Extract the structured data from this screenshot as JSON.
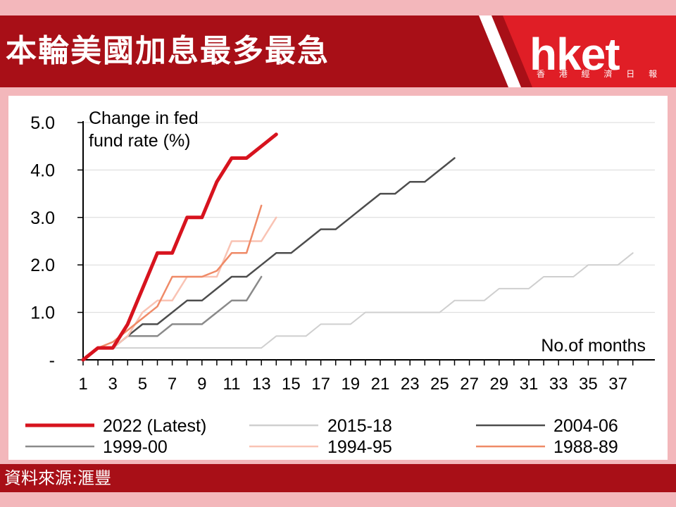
{
  "header": {
    "title": "本輪美國加息最多最急",
    "logo": "hket",
    "logo_sub": "香 港 經 濟 日 報",
    "bg_color": "#a80f17"
  },
  "footer": {
    "source": "資料來源:滙豐"
  },
  "chart_data": {
    "type": "line",
    "ylabel": "Change in fed fund rate (%)",
    "xlabel": "No.of months",
    "ylim": [
      0,
      5
    ],
    "xlim": [
      1,
      38
    ],
    "y_ticks": [
      "-",
      "1.0",
      "2.0",
      "3.0",
      "4.0",
      "5.0"
    ],
    "x_ticks": [
      "1",
      "3",
      "5",
      "7",
      "9",
      "11",
      "13",
      "15",
      "17",
      "19",
      "21",
      "23",
      "25",
      "27",
      "29",
      "31",
      "33",
      "35",
      "37"
    ],
    "grid": "horizontal",
    "legend_position": "bottom",
    "series": [
      {
        "name": "2015-18",
        "color": "#cfcfcf",
        "width": 2,
        "x": [
          1,
          2,
          3,
          4,
          5,
          6,
          7,
          8,
          9,
          10,
          11,
          12,
          13,
          14,
          15,
          16,
          17,
          18,
          19,
          20,
          21,
          22,
          23,
          24,
          25,
          26,
          27,
          28,
          29,
          30,
          31,
          32,
          33,
          34,
          35,
          36,
          37,
          38
        ],
        "y": [
          0,
          0.25,
          0.25,
          0.25,
          0.25,
          0.25,
          0.25,
          0.25,
          0.25,
          0.25,
          0.25,
          0.25,
          0.25,
          0.5,
          0.5,
          0.5,
          0.75,
          0.75,
          0.75,
          1.0,
          1.0,
          1.0,
          1.0,
          1.0,
          1.0,
          1.25,
          1.25,
          1.25,
          1.5,
          1.5,
          1.5,
          1.75,
          1.75,
          1.75,
          2.0,
          2.0,
          2.0,
          2.25
        ]
      },
      {
        "name": "1999-00",
        "color": "#8a8a8a",
        "width": 2.5,
        "x": [
          1,
          2,
          3,
          4,
          5,
          6,
          7,
          8,
          9,
          10,
          11,
          12,
          13
        ],
        "y": [
          0,
          0.25,
          0.25,
          0.5,
          0.5,
          0.5,
          0.75,
          0.75,
          0.75,
          1.0,
          1.25,
          1.25,
          1.75
        ]
      },
      {
        "name": "2004-06",
        "color": "#4d4d4d",
        "width": 2.5,
        "x": [
          1,
          2,
          3,
          4,
          5,
          6,
          7,
          8,
          9,
          10,
          11,
          12,
          13,
          14,
          15,
          16,
          17,
          18,
          19,
          20,
          21,
          22,
          23,
          24,
          25,
          26
        ],
        "y": [
          0,
          0.25,
          0.25,
          0.5,
          0.75,
          0.75,
          1.0,
          1.25,
          1.25,
          1.5,
          1.75,
          1.75,
          2.0,
          2.25,
          2.25,
          2.5,
          2.75,
          2.75,
          3.0,
          3.25,
          3.5,
          3.5,
          3.75,
          3.75,
          4.0,
          4.25
        ]
      },
      {
        "name": "1994-95",
        "color": "#f9c3b4",
        "width": 2.5,
        "x": [
          1,
          2,
          3,
          4,
          5,
          6,
          7,
          8,
          9,
          10,
          11,
          12,
          13,
          14
        ],
        "y": [
          0,
          0.25,
          0.25,
          0.5,
          1.0,
          1.25,
          1.25,
          1.75,
          1.75,
          1.75,
          2.5,
          2.5,
          2.5,
          3.0
        ]
      },
      {
        "name": "1988-89",
        "color": "#ef8a67",
        "width": 2.5,
        "x": [
          1,
          2,
          3,
          4,
          5,
          6,
          7,
          8,
          9,
          10,
          11,
          12,
          13
        ],
        "y": [
          0,
          0.25,
          0.375,
          0.625,
          0.875,
          1.125,
          1.75,
          1.75,
          1.75,
          1.875,
          2.25,
          2.25,
          3.25
        ]
      },
      {
        "name": "2022 (Latest)",
        "color": "#d7131e",
        "width": 5,
        "x": [
          1,
          2,
          3,
          4,
          5,
          6,
          7,
          8,
          9,
          10,
          11,
          12,
          13,
          14
        ],
        "y": [
          0,
          0.25,
          0.25,
          0.75,
          1.5,
          2.25,
          2.25,
          3.0,
          3.0,
          3.75,
          4.25,
          4.25,
          4.5,
          4.75
        ]
      }
    ],
    "legend": [
      [
        "2022 (Latest)",
        "2015-18",
        "2004-06"
      ],
      [
        "1999-00",
        "1994-95",
        "1988-89"
      ]
    ]
  }
}
